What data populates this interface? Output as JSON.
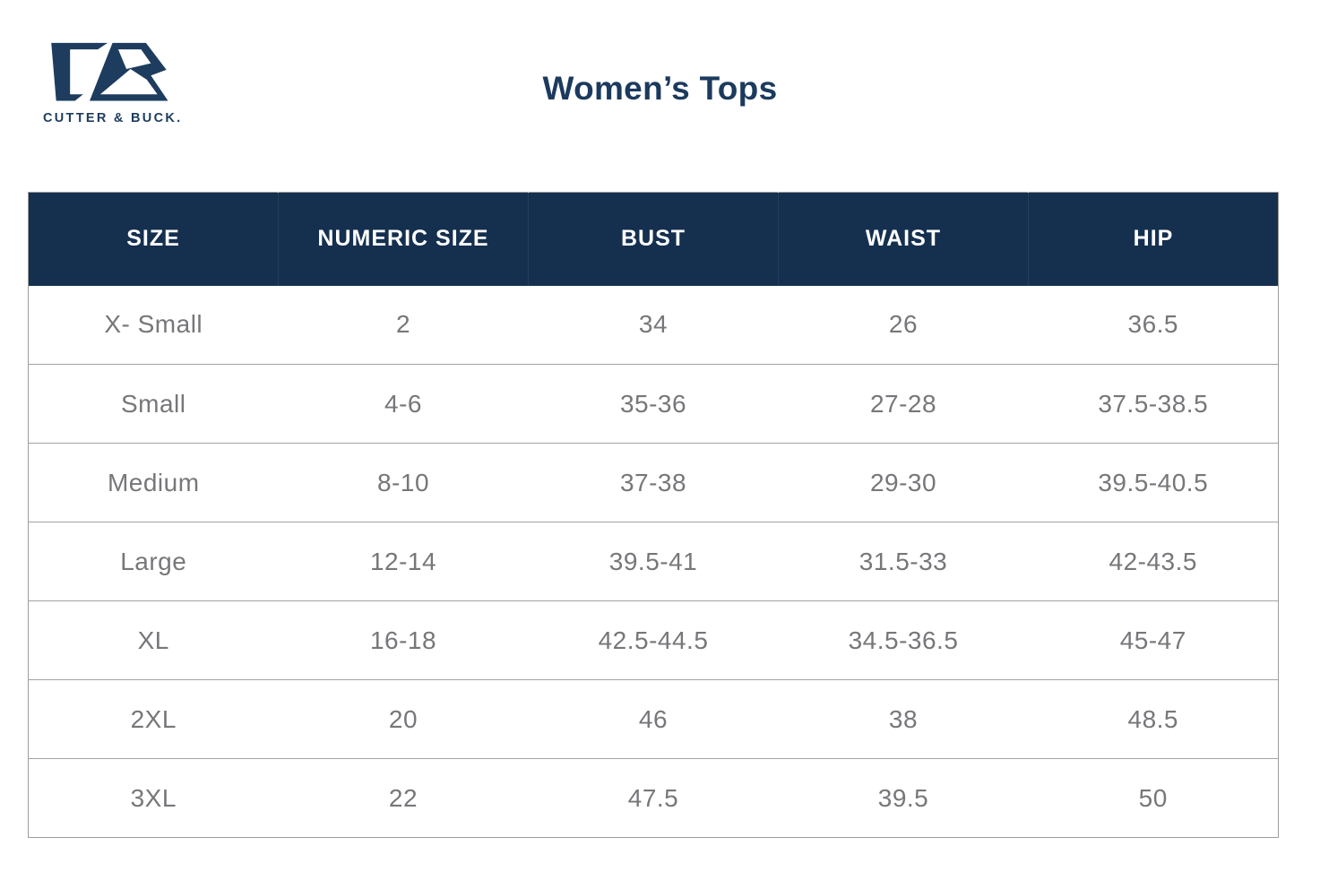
{
  "brand": {
    "wordmark": "CUTTER & BUCK.",
    "logo_color": "#1e3c5e"
  },
  "page": {
    "title": "Women’s Tops"
  },
  "table": {
    "headers": [
      "SIZE",
      "NUMERIC SIZE",
      "BUST",
      "WAIST",
      "HIP"
    ],
    "rows": [
      [
        "X- Small",
        "2",
        "34",
        "26",
        "36.5"
      ],
      [
        "Small",
        "4-6",
        "35-36",
        "27-28",
        "37.5-38.5"
      ],
      [
        "Medium",
        "8-10",
        "37-38",
        "29-30",
        "39.5-40.5"
      ],
      [
        "Large",
        "12-14",
        "39.5-41",
        "31.5-33",
        "42-43.5"
      ],
      [
        "XL",
        "16-18",
        "42.5-44.5",
        "34.5-36.5",
        "45-47"
      ],
      [
        "2XL",
        "20",
        "46",
        "38",
        "48.5"
      ],
      [
        "3XL",
        "22",
        "47.5",
        "39.5",
        "50"
      ]
    ],
    "colors": {
      "header_bg": "#152f4f",
      "header_text": "#ffffff",
      "cell_text": "#76777a",
      "row_line": "#a3a3a3"
    }
  }
}
